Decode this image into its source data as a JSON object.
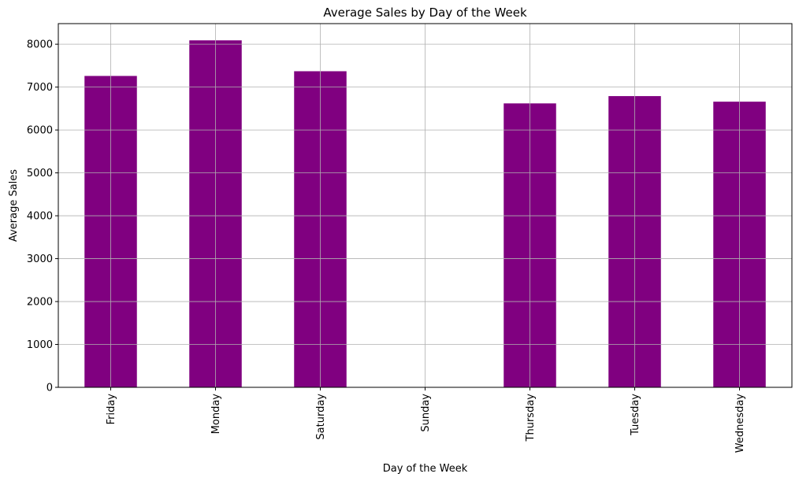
{
  "chart_data": {
    "type": "bar",
    "title": "Average Sales by Day of the Week",
    "xlabel": "Day of the Week",
    "ylabel": "Average Sales",
    "categories": [
      "Friday",
      "Monday",
      "Saturday",
      "Sunday",
      "Thursday",
      "Tuesday",
      "Wednesday"
    ],
    "values": [
      7260,
      8090,
      7370,
      0,
      6620,
      6790,
      6660
    ],
    "ylim": [
      0,
      8480
    ],
    "yticks": [
      0,
      1000,
      2000,
      3000,
      4000,
      5000,
      6000,
      7000,
      8000
    ],
    "grid": true,
    "bar_color": "#800080",
    "x_tick_rotation": "vertical"
  }
}
